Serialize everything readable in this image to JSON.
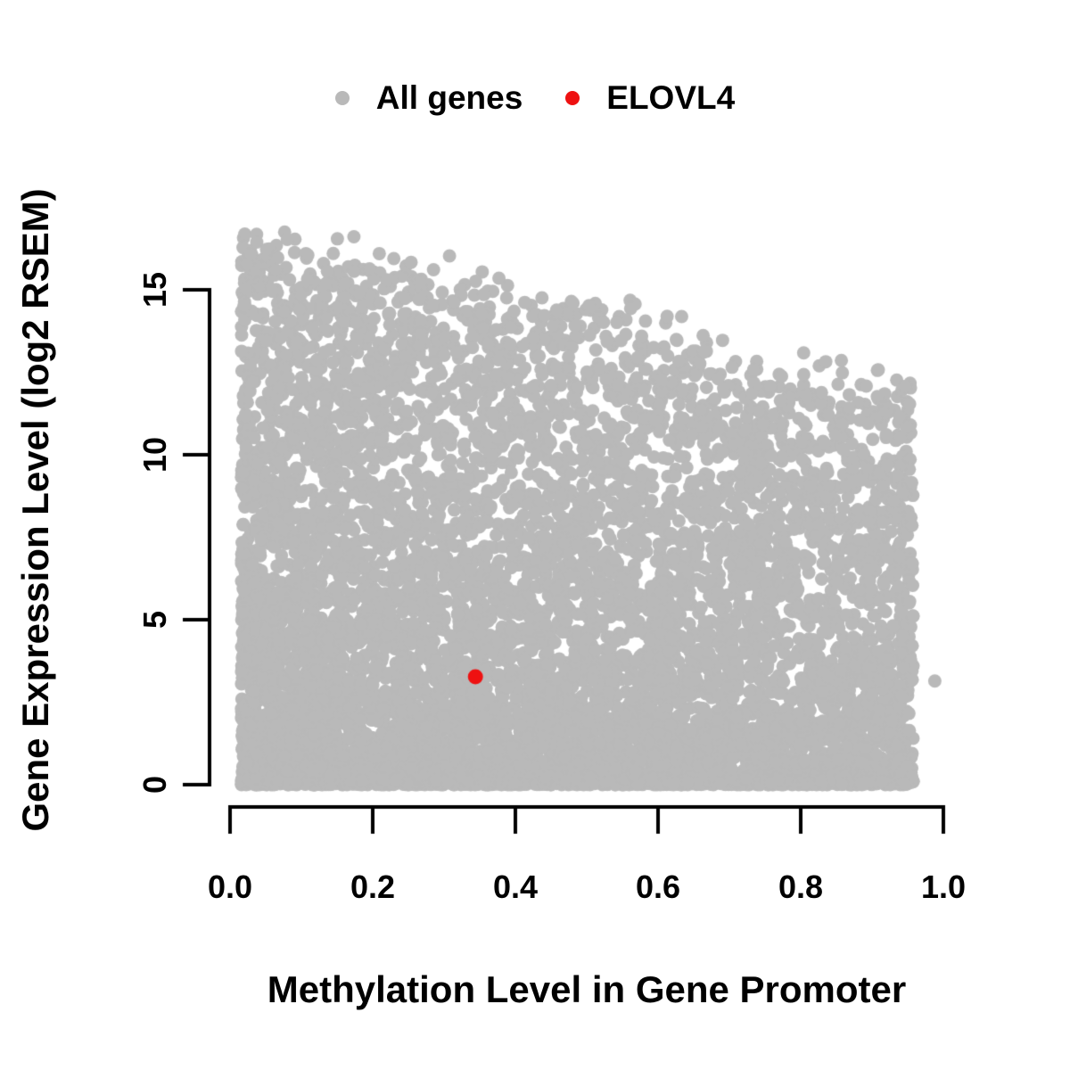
{
  "legend": {
    "position": "top-center",
    "entries": [
      {
        "label": "All genes",
        "color": "#b9b9b9",
        "icon": "filled-circle"
      },
      {
        "label": "ELOVL4",
        "color": "#ee1111",
        "icon": "filled-circle"
      }
    ]
  },
  "chart_data": {
    "type": "scatter",
    "title": "",
    "xlabel": "Methylation Level in Gene Promoter",
    "ylabel": "Gene Expression Level (log2 RSEM)",
    "xlim": [
      0,
      1.0
    ],
    "ylim": [
      0,
      17
    ],
    "x_ticks": [
      0.0,
      0.2,
      0.4,
      0.6,
      0.8,
      1.0
    ],
    "x_tick_labels": [
      "0.0",
      "0.2",
      "0.4",
      "0.6",
      "0.8",
      "1.0"
    ],
    "y_ticks": [
      0,
      5,
      10,
      15
    ],
    "y_tick_labels": [
      "0",
      "5",
      "10",
      "15"
    ],
    "grid": false,
    "axis_color": "#000000",
    "series": [
      {
        "name": "All genes",
        "render": "procedural-dense-cloud",
        "color": "#b9b9b9",
        "marker_radius_px": 7.5,
        "n_points": 8000,
        "seed": 7,
        "x_range": [
          0.016,
          0.958
        ],
        "x_power": 1.2,
        "y_envelope": {
          "intercept": 16.9,
          "slope": -5.3,
          "jitter": 1.8,
          "max": 17.0
        },
        "y_power": 1.85,
        "extra_points": [
          [
            0.988,
            3.14
          ]
        ]
      },
      {
        "name": "ELOVL4",
        "render": "highlight-points",
        "color": "#ee1111",
        "marker_radius_px": 8.5,
        "points": [
          [
            0.344,
            3.27
          ]
        ]
      }
    ]
  }
}
